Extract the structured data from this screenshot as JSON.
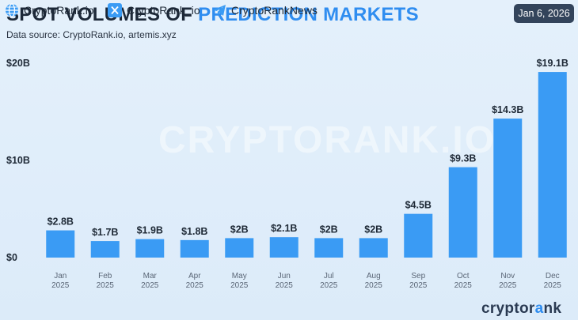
{
  "header": {
    "title_part1": "SPOT VOLUMES OF",
    "title_part2": "PREDICTION MARKETS",
    "subtitle": "Data source: CryptoRank.io, artemis.xyz",
    "date": "Jan 6, 2026"
  },
  "watermark": "CRYPTORANK.IO",
  "colors": {
    "bar": "#3a9bf4",
    "accent": "#2f8df0",
    "badge_bg": "#33445b"
  },
  "chart_data": {
    "type": "bar",
    "title": "SPOT VOLUMES OF PREDICTION MARKETS",
    "xlabel": "",
    "ylabel": "",
    "ylim": [
      0,
      20
    ],
    "yticks": [
      0,
      10,
      20
    ],
    "ytick_labels": [
      "$0",
      "$10B",
      "$20B"
    ],
    "grid": false,
    "categories": [
      "Jan 2025",
      "Feb 2025",
      "Mar 2025",
      "Apr 2025",
      "May 2025",
      "Jun 2025",
      "Jul 2025",
      "Aug 2025",
      "Sep 2025",
      "Oct 2025",
      "Nov 2025",
      "Dec 2025"
    ],
    "month_labels": [
      "Jan",
      "Feb",
      "Mar",
      "Apr",
      "May",
      "Jun",
      "Jul",
      "Aug",
      "Sep",
      "Oct",
      "Nov",
      "Dec"
    ],
    "year_labels": [
      "2025",
      "2025",
      "2025",
      "2025",
      "2025",
      "2025",
      "2025",
      "2025",
      "2025",
      "2025",
      "2025",
      "2025"
    ],
    "values": [
      2.8,
      1.7,
      1.9,
      1.8,
      2.0,
      2.1,
      2.0,
      2.0,
      4.5,
      9.3,
      14.3,
      19.1
    ],
    "data_labels": [
      "$2.8B",
      "$1.7B",
      "$1.9B",
      "$1.8B",
      "$2B",
      "$2.1B",
      "$2B",
      "$2B",
      "$4.5B",
      "$9.3B",
      "$14.3B",
      "$19.1B"
    ]
  },
  "footer": {
    "website": "CryptoRank.io",
    "twitter": "CryptoRank_io",
    "telegram": "CryptoRankNews",
    "logo_prefix": "cryptor",
    "logo_accent": "a",
    "logo_suffix": "nk"
  }
}
